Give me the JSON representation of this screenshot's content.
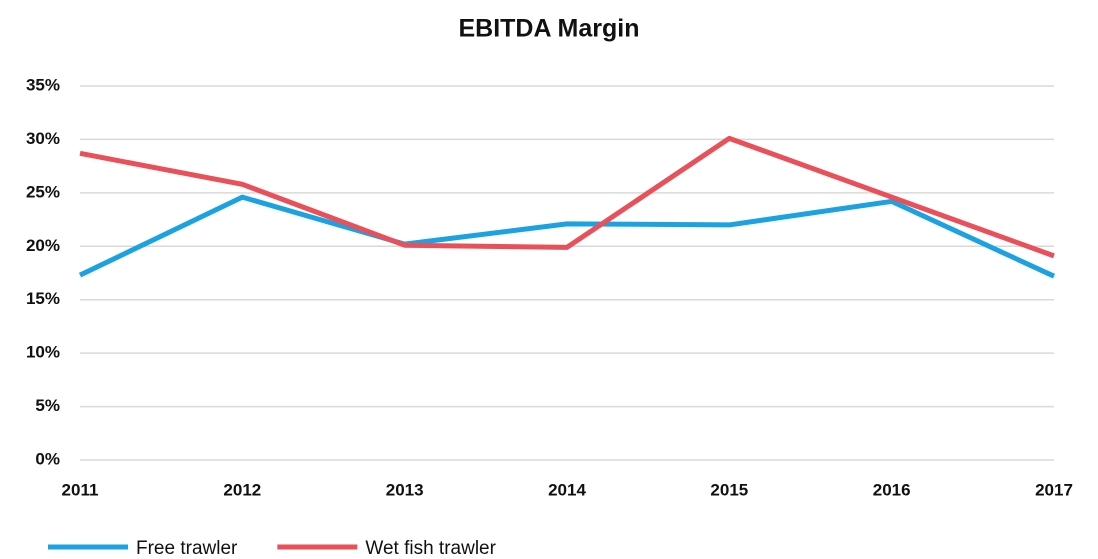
{
  "chart_data": {
    "type": "line",
    "title": "EBITDA Margin",
    "categories": [
      "2011",
      "2012",
      "2013",
      "2014",
      "2015",
      "2016",
      "2017"
    ],
    "series": [
      {
        "name": "Free trawler",
        "color": "#1aa3e0",
        "values": [
          17.3,
          24.6,
          20.2,
          22.1,
          22.0,
          24.2,
          17.2
        ]
      },
      {
        "name": "Wet fish trawler",
        "color": "#e9505a",
        "values": [
          28.7,
          25.8,
          20.1,
          19.9,
          30.1,
          24.6,
          19.1
        ]
      }
    ],
    "ylim": [
      0,
      35
    ],
    "yticks": [
      {
        "value": 0,
        "label": "0%"
      },
      {
        "value": 5,
        "label": "5%"
      },
      {
        "value": 10,
        "label": "10%"
      },
      {
        "value": 15,
        "label": "15%"
      },
      {
        "value": 20,
        "label": "20%"
      },
      {
        "value": 25,
        "label": "25%"
      },
      {
        "value": 30,
        "label": "30%"
      },
      {
        "value": 35,
        "label": "35%"
      }
    ],
    "grid": true,
    "legend": "bottom"
  }
}
